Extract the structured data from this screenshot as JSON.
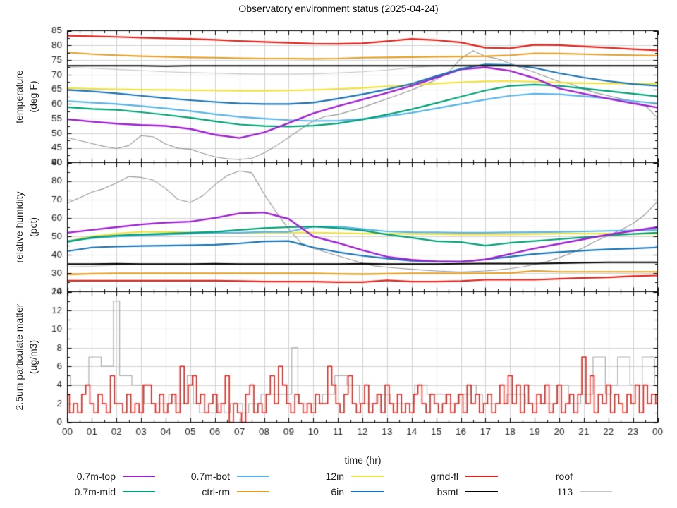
{
  "title": "Observatory environment status (2025-04-24)",
  "x_axis": {
    "title": "time (hr)",
    "range": [
      0,
      24
    ],
    "tick_labels": [
      "00",
      "01",
      "02",
      "03",
      "04",
      "05",
      "06",
      "07",
      "08",
      "09",
      "10",
      "11",
      "12",
      "13",
      "14",
      "15",
      "16",
      "17",
      "18",
      "19",
      "20",
      "21",
      "22",
      "23",
      "00"
    ],
    "minor_step": 0.5,
    "grid": true
  },
  "colors": {
    "0.7m-top": "#9e20d0",
    "0.7m-mid": "#00a076",
    "0.7m-bot": "#59b3e8",
    "ctrl-rm": "#e5a028",
    "12in": "#f0e242",
    "6in": "#1873b4",
    "grnd-fl": "#e3221b",
    "bsmt": "#000000",
    "roof": "#949494",
    "113": "#bdbdbd",
    "grid": "#d2d2d2",
    "text": "#1d1d1d"
  },
  "legend": {
    "columns": [
      [
        {
          "label": "0.7m-top",
          "color": "#9e20d0",
          "lw": 2.5
        },
        {
          "label": "0.7m-mid",
          "color": "#00a076",
          "lw": 2.5
        }
      ],
      [
        {
          "label": "0.7m-bot",
          "color": "#59b3e8",
          "lw": 2.5
        },
        {
          "label": "ctrl-rm",
          "color": "#e5a028",
          "lw": 2.5
        }
      ],
      [
        {
          "label": "12in",
          "color": "#f0e242",
          "lw": 2.5
        },
        {
          "label": "6in",
          "color": "#1873b4",
          "lw": 2.5
        }
      ],
      [
        {
          "label": "grnd-fl",
          "color": "#e3221b",
          "lw": 2.5
        },
        {
          "label": "bsmt",
          "color": "#000000",
          "lw": 2.5
        }
      ],
      [
        {
          "label": "roof",
          "color": "#949494",
          "lw": 1.2
        },
        {
          "label": "113",
          "color": "#c4c4c4",
          "lw": 1.2
        }
      ]
    ]
  },
  "chart_data": [
    {
      "type": "line",
      "panel": "temperature",
      "ylabel_lines": [
        "temperature",
        "(deg F)"
      ],
      "ylim": [
        40,
        85
      ],
      "label_step": 5,
      "minor_step": 2.5,
      "grid": true,
      "series": [
        {
          "name": "113",
          "color": "#c4c4c4",
          "lw": 1.1,
          "dx": 1,
          "steps": false,
          "values": [
            72.5,
            72.2,
            71.8,
            71.4,
            71.0,
            70.7,
            70.5,
            70.3,
            70.2,
            70.2,
            70.3,
            70.6,
            71.0,
            71.6,
            72.4,
            73.0,
            73.3,
            73.4,
            73.4,
            73.3,
            73.3,
            73.2,
            73.2,
            73.2,
            73.2
          ]
        },
        {
          "name": "roof",
          "color": "#949494",
          "lw": 1.1,
          "dx": 0.5,
          "steps": false,
          "values": [
            48.5,
            47.5,
            46.5,
            45.5,
            44.8,
            45.8,
            49.2,
            48.8,
            46.3,
            44.9,
            44.6,
            43.2,
            42,
            41.3,
            41.1,
            41.5,
            43.3,
            45.8,
            48.6,
            51.5,
            54.2,
            55.8,
            56.4,
            57.6,
            58.8,
            60.3,
            61.8,
            63.2,
            64.8,
            66.5,
            68.3,
            70.8,
            75.5,
            78.2,
            76.2,
            75.4,
            73.8,
            72.2,
            70.8,
            69.2,
            67.6,
            66.8,
            65,
            63.8,
            62.8,
            61.8,
            61,
            59.5,
            55.2
          ]
        },
        {
          "name": "12in",
          "color": "#f0e242",
          "lw": 2.2,
          "dx": 1,
          "steps": false,
          "values": [
            65.4,
            65.2,
            65.0,
            64.9,
            64.8,
            64.7,
            64.6,
            64.5,
            64.5,
            64.6,
            64.8,
            65.1,
            65.5,
            66.0,
            66.5,
            67.0,
            67.4,
            67.7,
            67.8,
            67.6,
            67.3,
            67.1,
            67.0,
            66.9,
            66.9
          ]
        },
        {
          "name": "0.7m-bot",
          "color": "#59b3e8",
          "lw": 2.2,
          "dx": 1,
          "steps": false,
          "values": [
            61.0,
            60.5,
            60.0,
            59.3,
            58.5,
            57.6,
            56.5,
            55.6,
            55.0,
            54.5,
            54.2,
            54.3,
            54.9,
            55.8,
            57.0,
            58.5,
            60.0,
            61.5,
            62.8,
            63.5,
            63.3,
            62.6,
            61.9,
            61.0,
            60.2
          ]
        },
        {
          "name": "0.7m-mid",
          "color": "#00a076",
          "lw": 2.2,
          "dx": 1,
          "steps": false,
          "values": [
            58.9,
            58.3,
            58.0,
            57.2,
            56.3,
            55.3,
            54.1,
            53.0,
            52.5,
            52.3,
            52.6,
            53.4,
            54.7,
            56.4,
            58.2,
            60.3,
            62.5,
            64.6,
            66.2,
            66.6,
            66.2,
            65.3,
            64.4,
            63.5,
            62.6
          ]
        },
        {
          "name": "0.7m-top",
          "color": "#9e20d0",
          "lw": 2.4,
          "dx": 1,
          "steps": false,
          "values": [
            54.8,
            54.0,
            53.3,
            52.8,
            52.5,
            51.5,
            49.5,
            48.4,
            50.3,
            53.5,
            56.8,
            59.3,
            61.5,
            63.8,
            66.2,
            69.0,
            71.8,
            72.5,
            71.3,
            68.8,
            65.3,
            63.5,
            61.8,
            60.2,
            58.8
          ]
        },
        {
          "name": "6in",
          "color": "#1873b4",
          "lw": 2.2,
          "dx": 1,
          "steps": false,
          "values": [
            64.8,
            64.3,
            63.6,
            62.8,
            62.0,
            61.3,
            60.7,
            60.2,
            60.0,
            60.0,
            60.5,
            61.8,
            63.3,
            65.0,
            66.9,
            69.5,
            72.0,
            73.5,
            73.3,
            72.3,
            70.5,
            69.0,
            67.8,
            66.8,
            66.2
          ]
        },
        {
          "name": "ctrl-rm",
          "color": "#e5a028",
          "lw": 2.2,
          "dx": 1,
          "steps": false,
          "values": [
            77.6,
            77.0,
            76.6,
            76.3,
            76.1,
            75.9,
            75.8,
            75.6,
            75.5,
            75.5,
            75.4,
            75.5,
            75.8,
            75.9,
            76.0,
            76.1,
            76.2,
            76.3,
            76.6,
            77.3,
            77.2,
            77.0,
            76.8,
            76.6,
            76.5
          ]
        },
        {
          "name": "grnd-fl",
          "color": "#e3221b",
          "lw": 2.2,
          "dx": 1,
          "steps": false,
          "values": [
            83.3,
            83.1,
            82.9,
            82.6,
            82.4,
            82.2,
            81.9,
            81.5,
            81.2,
            80.9,
            80.6,
            80.5,
            80.7,
            81.4,
            82.2,
            81.8,
            81.0,
            79.2,
            79.0,
            80.2,
            80.1,
            79.6,
            79.2,
            78.7,
            78.3
          ]
        },
        {
          "name": "bsmt",
          "color": "#000000",
          "lw": 2.0,
          "dx": 1,
          "steps": false,
          "values": [
            73,
            73,
            73,
            73,
            72.9,
            73,
            73,
            73,
            73,
            73,
            73,
            73,
            73,
            73,
            73,
            73,
            73,
            73,
            73,
            73,
            73,
            73,
            73,
            73,
            73
          ]
        }
      ]
    },
    {
      "type": "line",
      "panel": "relative humidity",
      "ylabel_lines": [
        "relative humidity",
        "(pct)"
      ],
      "ylim": [
        20,
        90
      ],
      "label_step": 10,
      "minor_step": 5,
      "grid": true,
      "series": [
        {
          "name": "113",
          "color": "#c4c4c4",
          "lw": 1.1,
          "dx": 1,
          "steps": false,
          "values": [
            33.5,
            33.8,
            34.5,
            35,
            35,
            35,
            35,
            35,
            35,
            35,
            35,
            35,
            35,
            35,
            35,
            35,
            35,
            35,
            35,
            35,
            35.2,
            35.4,
            35.5,
            35.5,
            35.5
          ]
        },
        {
          "name": "roof",
          "color": "#949494",
          "lw": 1.1,
          "dx": 0.5,
          "steps": false,
          "values": [
            68,
            71,
            74,
            76,
            79,
            82.5,
            82,
            80.5,
            76,
            70,
            68.4,
            72,
            78,
            83,
            85.5,
            84.5,
            73,
            63,
            54,
            46.5,
            43.5,
            41.5,
            39.5,
            37.5,
            35.5,
            34,
            33.3,
            32.7,
            32.2,
            31.7,
            31.3,
            31,
            30.7,
            31,
            31.3,
            31.8,
            32.5,
            33.5,
            34.8,
            36.3,
            38.5,
            41,
            44,
            47.5,
            50.5,
            53.5,
            57,
            62,
            69
          ]
        },
        {
          "name": "12in",
          "color": "#f0e242",
          "lw": 2.2,
          "dx": 1,
          "steps": false,
          "values": [
            47.5,
            50,
            51.5,
            52.5,
            52.5,
            52,
            52,
            51.8,
            52,
            52,
            52,
            51.8,
            51.5,
            51.5,
            51.3,
            51.2,
            51,
            51,
            51,
            51.2,
            51.5,
            51.5,
            51.5,
            51.2,
            51.5
          ]
        },
        {
          "name": "0.7m-bot",
          "color": "#59b3e8",
          "lw": 2.2,
          "dx": 1,
          "steps": false,
          "values": [
            47.5,
            49,
            50,
            50.5,
            51,
            51.5,
            52,
            52,
            52.5,
            52.5,
            55.3,
            55.3,
            54,
            52.7,
            52.3,
            52.2,
            52,
            52,
            52.2,
            52.3,
            52.5,
            52.7,
            53,
            53.2,
            53.5
          ]
        },
        {
          "name": "0.7m-mid",
          "color": "#00a076",
          "lw": 2.2,
          "dx": 1,
          "steps": false,
          "values": [
            47,
            49.5,
            50.5,
            51,
            51.5,
            52,
            52.5,
            53.5,
            54.5,
            55,
            55.3,
            54.5,
            53.2,
            51,
            49.3,
            47.4,
            46.9,
            45,
            46.5,
            47.5,
            48.5,
            49.5,
            50.5,
            51.3,
            52
          ]
        },
        {
          "name": "6in",
          "color": "#1873b4",
          "lw": 2.2,
          "dx": 1,
          "steps": false,
          "values": [
            42,
            44,
            44.5,
            44.8,
            45,
            45.2,
            45.5,
            46.2,
            47.3,
            47.5,
            44,
            41.5,
            39.5,
            38,
            36.8,
            36.4,
            36.3,
            37.5,
            39,
            40.5,
            41.5,
            42.3,
            43,
            43.5,
            44
          ]
        },
        {
          "name": "0.7m-top",
          "color": "#9e20d0",
          "lw": 2.4,
          "dx": 1,
          "steps": false,
          "values": [
            52,
            53.5,
            55,
            56.5,
            57.5,
            58,
            60,
            62.5,
            63,
            59.5,
            50,
            46.5,
            42.5,
            39,
            37.3,
            36.5,
            36.3,
            37.5,
            40.5,
            43.5,
            46,
            48.5,
            51,
            53,
            55
          ]
        },
        {
          "name": "ctrl-rm",
          "color": "#e5a028",
          "lw": 2.2,
          "dx": 1,
          "steps": false,
          "values": [
            29.3,
            29.8,
            30,
            30,
            30,
            30,
            30,
            30,
            30,
            30,
            30,
            29.7,
            29.5,
            29.8,
            30,
            30,
            30,
            30,
            30.2,
            31.3,
            30.8,
            30.8,
            30.8,
            30.8,
            30.8
          ]
        },
        {
          "name": "grnd-fl",
          "color": "#e3221b",
          "lw": 2.2,
          "dx": 1,
          "steps": false,
          "values": [
            26,
            26,
            26,
            26,
            26,
            26,
            26,
            25.8,
            25.5,
            25.5,
            25.5,
            25.2,
            25.2,
            26.2,
            25.5,
            25.5,
            25.8,
            26.5,
            26.5,
            26.5,
            27,
            27.5,
            27.8,
            28.5,
            28.8
          ]
        },
        {
          "name": "bsmt",
          "color": "#000000",
          "lw": 2.0,
          "dx": 1,
          "steps": false,
          "values": [
            35,
            35,
            35.2,
            35,
            35,
            35,
            35.2,
            35,
            35,
            35,
            35,
            35,
            35.2,
            35,
            35,
            35,
            35.2,
            35.3,
            35.3,
            35.3,
            35.5,
            35.8,
            36,
            36,
            36
          ]
        }
      ]
    },
    {
      "type": "line",
      "panel": "2.5um particulate matter",
      "ylabel_lines": [
        "2.5um particulate matter",
        "(ug/m3)"
      ],
      "ylim": [
        0,
        14
      ],
      "label_step": 2,
      "minor_step": 1,
      "grid": true,
      "series": [
        {
          "name": "113",
          "color": "#adadad",
          "lw": 1.2,
          "dx": 0.25,
          "steps": true,
          "values": [
            5,
            4,
            4,
            4,
            7,
            7,
            6,
            6,
            13,
            5,
            5,
            4,
            4,
            2,
            2,
            2,
            2,
            3,
            2,
            2,
            5,
            2,
            1,
            1,
            1,
            2,
            1,
            2,
            2,
            1,
            2,
            2,
            3,
            3,
            3,
            3,
            3,
            8,
            2,
            2,
            2,
            2,
            3,
            3,
            5,
            5,
            4,
            4,
            2,
            2,
            2,
            3,
            3,
            2,
            2,
            2,
            2,
            4,
            4,
            3,
            3,
            3,
            2,
            2,
            3,
            3,
            4,
            3,
            2,
            2,
            2,
            2,
            3,
            3,
            3,
            2,
            2,
            2,
            2,
            2,
            4,
            4,
            2,
            2,
            3,
            3,
            7,
            7,
            3,
            4,
            7,
            7,
            4,
            4,
            7,
            7,
            4
          ]
        },
        {
          "name": "grnd-fl",
          "color": "#e3221b",
          "lw": 1.6,
          "dx": 0.1667,
          "steps": true,
          "values": [
            3,
            1,
            2,
            1,
            3,
            4,
            2,
            1,
            3,
            2,
            1,
            5,
            2,
            2,
            1,
            3,
            1,
            2,
            1,
            4,
            4,
            2,
            1,
            3,
            1,
            2,
            3,
            1,
            6,
            2,
            4,
            5,
            2,
            3,
            1,
            2,
            3,
            1,
            2,
            5,
            0,
            2,
            1,
            0,
            3,
            4,
            1,
            2,
            1,
            3,
            5,
            2,
            6,
            4,
            2,
            1,
            3,
            2,
            1,
            2,
            1,
            3,
            2,
            2,
            6,
            4,
            2,
            1,
            3,
            5,
            2,
            1,
            2,
            4,
            1,
            2,
            3,
            1,
            4,
            2,
            1,
            3,
            1,
            2,
            1,
            3,
            4,
            2,
            1,
            3,
            2,
            1,
            2,
            3,
            1,
            2,
            3,
            1,
            4,
            2,
            3,
            1,
            2,
            3,
            1,
            2,
            4,
            2,
            5,
            2,
            4,
            1,
            4,
            2,
            1,
            3,
            2,
            4,
            1,
            2,
            4,
            1,
            2,
            3,
            1,
            3,
            7,
            2,
            5,
            1,
            3,
            2,
            4,
            1,
            3,
            2,
            1,
            3,
            2,
            4,
            1,
            4,
            2,
            3,
            2
          ]
        }
      ]
    }
  ]
}
